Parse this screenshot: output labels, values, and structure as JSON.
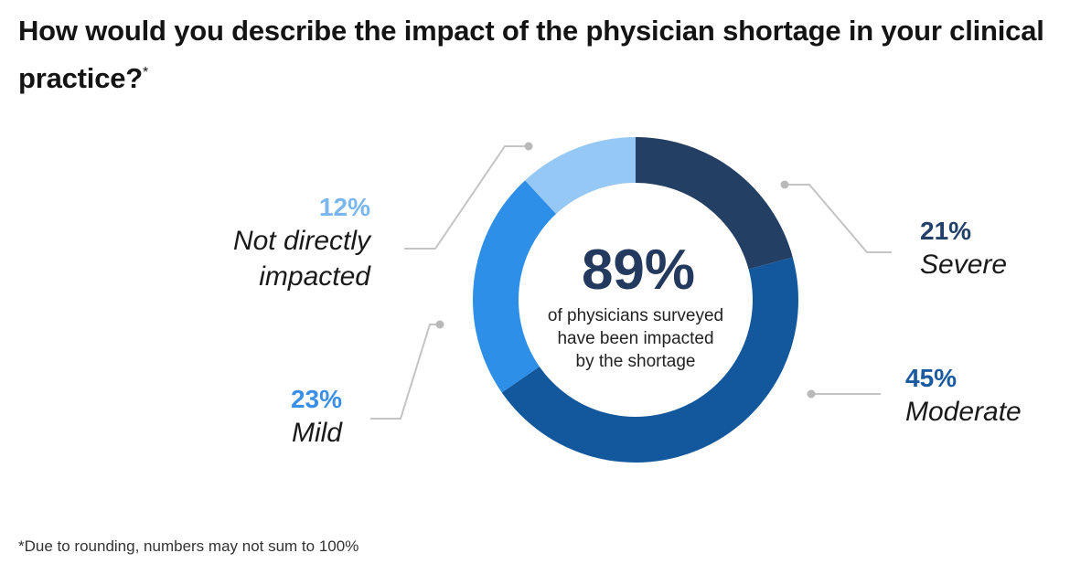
{
  "title": "How would you describe the impact of the physician shortage in your clinical practice?",
  "title_marker": "*",
  "footnote": "*Due to rounding, numbers may not sum to 100%",
  "chart_data": {
    "type": "pie",
    "variant": "donut",
    "title": "How would you describe the impact of the physician shortage in your clinical practice?",
    "center_text": {
      "value": "89%",
      "caption_lines": [
        "of physicians surveyed",
        "have been impacted",
        "by the shortage"
      ]
    },
    "slices": [
      {
        "key": "severe",
        "label": "Severe",
        "value": 21,
        "value_label": "21%",
        "color": "#233f63",
        "label_color": "#23406a"
      },
      {
        "key": "moderate",
        "label": "Moderate",
        "value": 45,
        "value_label": "45%",
        "color": "#13579d",
        "label_color": "#1a5aa0"
      },
      {
        "key": "mild",
        "label": "Mild",
        "value": 23,
        "value_label": "23%",
        "color": "#2e8fe8",
        "label_color": "#3a8fe6"
      },
      {
        "key": "not_directly",
        "label": "Not directly impacted",
        "value": 12,
        "value_label": "12%",
        "color": "#96c8f5",
        "label_color": "#7ab6ef"
      }
    ],
    "start_angle": "12 o'clock, clockwise",
    "leader_line_color": "#c4c4c4",
    "legend": "none (direct labels)"
  }
}
